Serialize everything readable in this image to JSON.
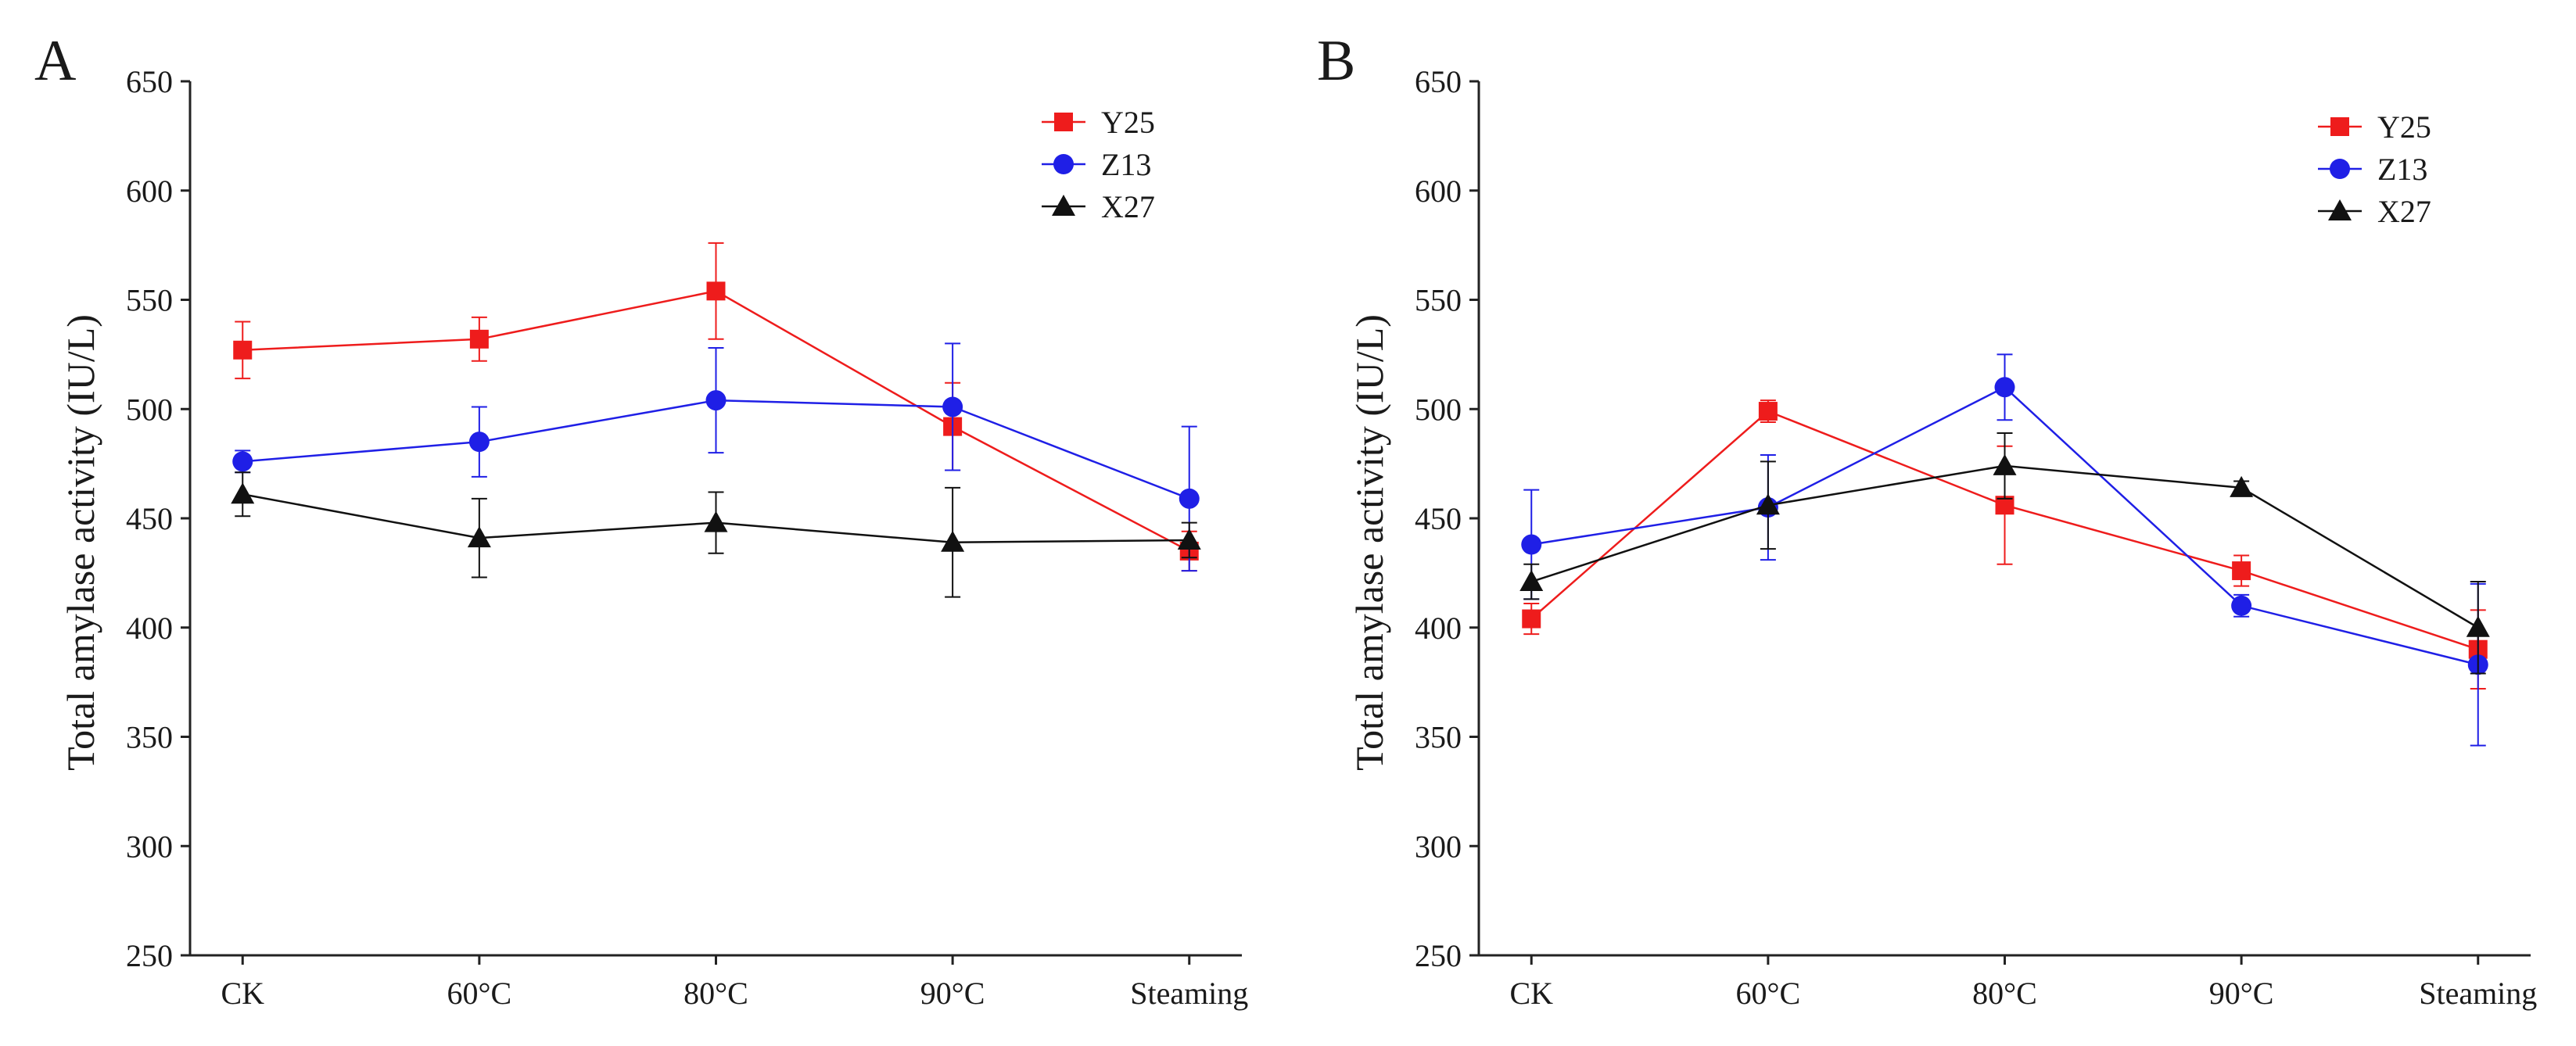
{
  "chart_data": [
    {
      "panel": "A",
      "type": "line",
      "title": "",
      "xlabel": "",
      "ylabel": "Total amylase activity (IU/L)",
      "categories": [
        "CK",
        "60°C",
        "80°C",
        "90°C",
        "Steaming"
      ],
      "ylim": [
        250,
        650
      ],
      "yticks": [
        250,
        300,
        350,
        400,
        450,
        500,
        550,
        600,
        650
      ],
      "grid": false,
      "legend_position": "top-right",
      "series": [
        {
          "name": "Y25",
          "color": "#ee1c1c",
          "marker": "square",
          "values": [
            527,
            532,
            554,
            492,
            435
          ],
          "errors": [
            13,
            10,
            22,
            20,
            9
          ]
        },
        {
          "name": "Z13",
          "color": "#1f1fe6",
          "marker": "circle",
          "values": [
            476,
            485,
            504,
            501,
            459
          ],
          "errors": [
            5,
            16,
            24,
            29,
            33
          ]
        },
        {
          "name": "X27",
          "color": "#111111",
          "marker": "triangle",
          "values": [
            461,
            441,
            448,
            439,
            440
          ],
          "errors": [
            10,
            18,
            14,
            25,
            8
          ]
        }
      ]
    },
    {
      "panel": "B",
      "type": "line",
      "title": "",
      "xlabel": "",
      "ylabel": "Total amylase activity (IU/L)",
      "categories": [
        "CK",
        "60°C",
        "80°C",
        "90°C",
        "Steaming"
      ],
      "ylim": [
        250,
        650
      ],
      "yticks": [
        250,
        300,
        350,
        400,
        450,
        500,
        550,
        600,
        650
      ],
      "grid": false,
      "legend_position": "top-right",
      "series": [
        {
          "name": "Y25",
          "color": "#ee1c1c",
          "marker": "square",
          "values": [
            404,
            499,
            456,
            426,
            390
          ],
          "errors": [
            7,
            5,
            27,
            7,
            18
          ]
        },
        {
          "name": "Z13",
          "color": "#1f1fe6",
          "marker": "circle",
          "values": [
            438,
            455,
            510,
            410,
            383
          ],
          "errors": [
            25,
            24,
            15,
            5,
            37
          ]
        },
        {
          "name": "X27",
          "color": "#111111",
          "marker": "triangle",
          "values": [
            421,
            456,
            474,
            464,
            400
          ],
          "errors": [
            8,
            20,
            15,
            3,
            21
          ]
        }
      ]
    }
  ]
}
